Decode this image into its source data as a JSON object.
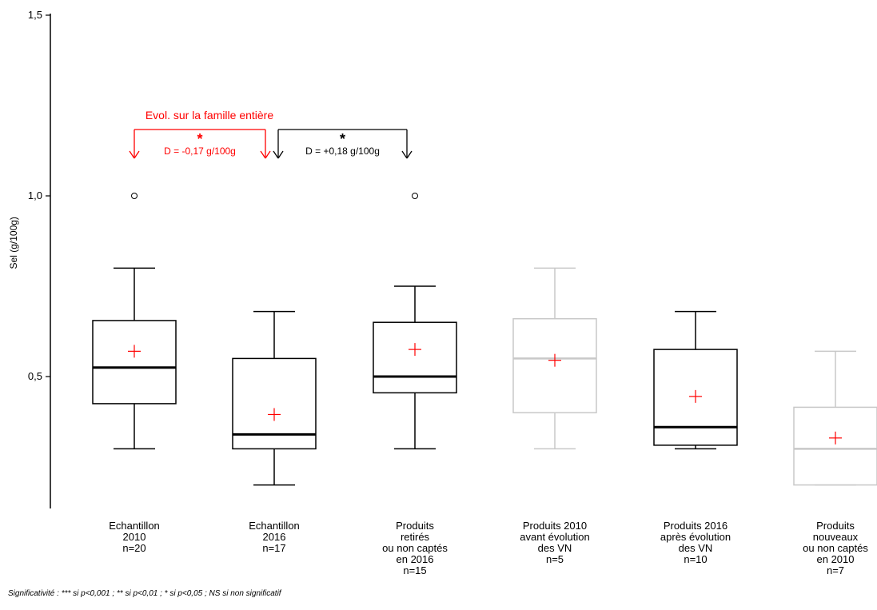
{
  "chart_data": {
    "type": "box",
    "ylabel": "Sel (g/100g)",
    "ylim": [
      0.15,
      1.52
    ],
    "yticks": [
      {
        "value": 0.5,
        "label": "0,5"
      },
      {
        "value": 1.0,
        "label": "1,0"
      },
      {
        "value": 1.5,
        "label": "1,5"
      }
    ],
    "boxes": [
      {
        "label_lines": [
          "Echantillon",
          "2010",
          "n=20"
        ],
        "min": 0.3,
        "q1": 0.425,
        "median": 0.525,
        "q3": 0.655,
        "max": 0.8,
        "mean": 0.57,
        "outliers": [
          1.0
        ],
        "emphasis": "strong"
      },
      {
        "label_lines": [
          "Echantillon",
          "2016",
          "n=17"
        ],
        "min": 0.2,
        "q1": 0.3,
        "median": 0.34,
        "q3": 0.55,
        "max": 0.68,
        "mean": 0.395,
        "outliers": [],
        "emphasis": "strong"
      },
      {
        "label_lines": [
          "Produits",
          "retirés",
          "ou non captés",
          "en 2016",
          "n=15"
        ],
        "min": 0.3,
        "q1": 0.455,
        "median": 0.5,
        "q3": 0.65,
        "max": 0.75,
        "mean": 0.575,
        "outliers": [
          1.0
        ],
        "emphasis": "strong"
      },
      {
        "label_lines": [
          "Produits 2010",
          "avant évolution",
          "des VN",
          "n=5"
        ],
        "min": 0.3,
        "q1": 0.4,
        "median": 0.55,
        "q3": 0.66,
        "max": 0.8,
        "mean": 0.545,
        "outliers": [],
        "emphasis": "light"
      },
      {
        "label_lines": [
          "Produits 2016",
          "après évolution",
          "des VN",
          "n=10"
        ],
        "min": 0.3,
        "q1": 0.31,
        "median": 0.36,
        "q3": 0.575,
        "max": 0.68,
        "mean": 0.445,
        "outliers": [],
        "emphasis": "strong"
      },
      {
        "label_lines": [
          "Produits",
          "nouveaux",
          "ou non captés",
          "en 2010",
          "n=7"
        ],
        "min": 0.2,
        "q1": 0.2,
        "median": 0.3,
        "q3": 0.415,
        "max": 0.57,
        "mean": 0.33,
        "outliers": [],
        "emphasis": "light"
      }
    ],
    "annotations": [
      {
        "from_box": 0,
        "to_box": 1,
        "title": "Evol. sur la famille entière",
        "star": "*",
        "text": "D = -0,17 g/100g",
        "color": "#ff0000"
      },
      {
        "from_box": 1,
        "to_box": 2,
        "title": "",
        "star": "*",
        "text": "D = +0,18 g/100g",
        "color": "#000000"
      }
    ],
    "colors": {
      "strong": "#000000",
      "light": "#c8c8c8",
      "mean_marker": "#ff0000"
    },
    "footnote": "Significativité : *** si p<0,001 ; ** si p<0,01 ; * si p<0,05 ; NS si non significatif"
  }
}
